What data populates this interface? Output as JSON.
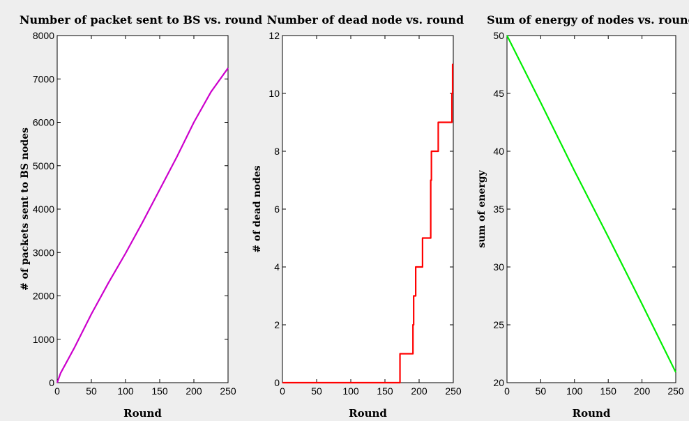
{
  "chart_data": [
    {
      "type": "line",
      "title": "Number of packet sent to BS vs. round",
      "xlabel": "Round",
      "ylabel": "# of packets sent to BS nodes",
      "xlim": [
        0,
        250
      ],
      "ylim": [
        0,
        8000
      ],
      "xticks": [
        0,
        50,
        100,
        150,
        200,
        250
      ],
      "yticks": [
        0,
        1000,
        2000,
        3000,
        4000,
        5000,
        6000,
        7000,
        8000
      ],
      "grid": false,
      "color": "#cc00cc",
      "series": [
        {
          "x": [
            0,
            5,
            25,
            50,
            75,
            100,
            125,
            150,
            175,
            200,
            225,
            250
          ],
          "values": [
            0,
            220,
            800,
            1580,
            2300,
            2980,
            3700,
            4450,
            5200,
            6000,
            6700,
            7250
          ]
        }
      ]
    },
    {
      "type": "line",
      "title": "Number of dead node vs. round",
      "xlabel": "Round",
      "ylabel": "# of dead nodes",
      "xlim": [
        0,
        250
      ],
      "ylim": [
        0,
        12
      ],
      "xticks": [
        0,
        50,
        100,
        150,
        200,
        250
      ],
      "yticks": [
        0,
        2,
        4,
        6,
        8,
        10,
        12
      ],
      "grid": false,
      "color": "#ff0000",
      "step": true,
      "series": [
        {
          "x": [
            0,
            172,
            191,
            192,
            195,
            198,
            205,
            210,
            217,
            218,
            220,
            228,
            248,
            249
          ],
          "values": [
            0,
            1,
            2,
            3,
            4,
            4,
            5,
            5,
            7,
            8,
            8,
            9,
            10,
            11
          ]
        }
      ]
    },
    {
      "type": "line",
      "title": "Sum of energy of nodes vs. round",
      "xlabel": "Round",
      "ylabel": "sum of energy",
      "xlim": [
        0,
        250
      ],
      "ylim": [
        20,
        50
      ],
      "xticks": [
        0,
        50,
        100,
        150,
        200,
        250
      ],
      "yticks": [
        20,
        25,
        30,
        35,
        40,
        45,
        50
      ],
      "grid": false,
      "color": "#00ee00",
      "series": [
        {
          "x": [
            0,
            50,
            100,
            150,
            200,
            250
          ],
          "values": [
            50,
            44.2,
            38.3,
            32.6,
            26.8,
            20.9
          ]
        }
      ]
    }
  ]
}
